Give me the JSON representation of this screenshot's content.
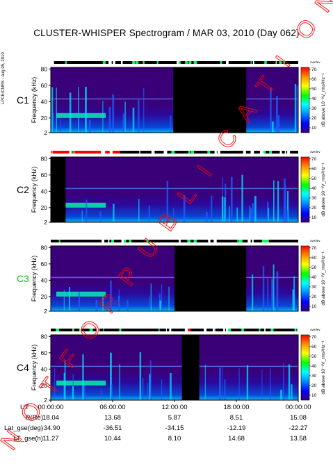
{
  "page": {
    "title": "CLUSTER-WHISPER Spectrogram / MAR 03, 2010 (Day 062)",
    "side_label": "LPCE/CNRS - aug 05, 2010",
    "watermark": "NOT FOR PUBLICATION"
  },
  "chart_data": {
    "type": "heatmap",
    "title": "CLUSTER-WHISPER Spectrogram / MAR 03, 2010 (Day 062)",
    "ylabel": "Frequency (kHz)",
    "ylim": [
      2,
      82
    ],
    "yticks": [
      "80",
      "60",
      "40",
      "20",
      "2"
    ],
    "colorbar": {
      "label": "dB above 10⁻⁸V_rms²Hz⁻¹",
      "ticks": [
        "70",
        "60",
        "50",
        "40",
        "30",
        "20",
        "10"
      ],
      "range": [
        5,
        72
      ],
      "colors": [
        "#3a0078",
        "#0000ff",
        "#0096ff",
        "#00ffff",
        "#00ff00",
        "#ffff00",
        "#ff8c00",
        "#ff0000"
      ],
      "status_label": "overlev"
    },
    "panels": [
      {
        "name": "C1",
        "name_color": "#000000"
      },
      {
        "name": "C2",
        "name_color": "#000000"
      },
      {
        "name": "C3",
        "name_color": "#00c800"
      },
      {
        "name": "C4",
        "name_color": "#000000"
      }
    ],
    "xlabel": "UT",
    "xticks": [
      "00:00:00",
      "06:00:00",
      "12:00:00",
      "18:00:00",
      "00:00:00"
    ],
    "ephemeris": [
      {
        "label": "R(Re)",
        "values": [
          "18.04",
          "13.68",
          "5.87",
          "8.51",
          "15.08"
        ]
      },
      {
        "label": "Lat_gse(deg)",
        "values": [
          "-34.90",
          "-36.51",
          "-34.15",
          "-12.19",
          "-22.27"
        ]
      },
      {
        "label": "LT_gse(h)",
        "values": [
          "11.27",
          "10.44",
          "8.10",
          "14.68",
          "13.58"
        ]
      }
    ]
  }
}
